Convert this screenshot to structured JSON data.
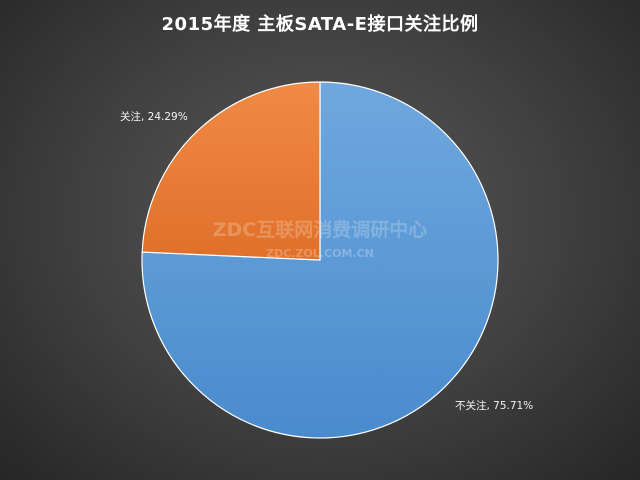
{
  "chart_data": {
    "type": "pie",
    "title": "2015年度 主板SATA-E接口关注比例",
    "slices": [
      {
        "label": "不关注",
        "value": 75.71,
        "data_label": "不关注, 75.71%",
        "color": "#5b9bd5"
      },
      {
        "label": "关注",
        "value": 24.29,
        "data_label": "关注, 24.29%",
        "color": "#ed7d31"
      }
    ],
    "legend": "none"
  },
  "watermark": {
    "main": "ZDC互联网消费调研中心",
    "sub": "ZDC.ZOL.COM.CN"
  }
}
